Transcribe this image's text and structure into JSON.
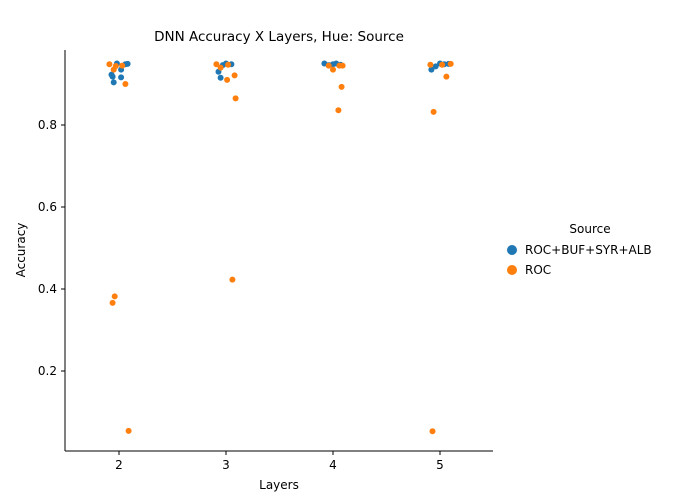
{
  "chart_data": {
    "type": "scatter",
    "title": "DNN Accuracy X Layers, Hue: Source",
    "xlabel": "Layers",
    "ylabel": "Accuracy",
    "categories": [
      "2",
      "3",
      "4",
      "5"
    ],
    "ylim": [
      0.0,
      1.0
    ],
    "yticks": [
      "0.2",
      "0.4",
      "0.6",
      "0.8"
    ],
    "grid": false,
    "legend": {
      "title": "Source",
      "position": "right"
    },
    "series": [
      {
        "name": "ROC+BUF+SYR+ALB",
        "color": "#1f77b4",
        "points": [
          {
            "x": "2",
            "jitter": -0.07,
            "y": 0.923
          },
          {
            "x": "2",
            "jitter": -0.06,
            "y": 0.918
          },
          {
            "x": "2",
            "jitter": -0.05,
            "y": 0.904
          },
          {
            "x": "2",
            "jitter": -0.02,
            "y": 0.95
          },
          {
            "x": "2",
            "jitter": 0.02,
            "y": 0.935
          },
          {
            "x": "2",
            "jitter": 0.02,
            "y": 0.916
          },
          {
            "x": "2",
            "jitter": 0.06,
            "y": 0.948
          },
          {
            "x": "2",
            "jitter": 0.08,
            "y": 0.949
          },
          {
            "x": "3",
            "jitter": -0.07,
            "y": 0.93
          },
          {
            "x": "3",
            "jitter": -0.05,
            "y": 0.915
          },
          {
            "x": "3",
            "jitter": -0.03,
            "y": 0.946
          },
          {
            "x": "3",
            "jitter": 0.0,
            "y": 0.95
          },
          {
            "x": "3",
            "jitter": 0.05,
            "y": 0.948
          },
          {
            "x": "4",
            "jitter": -0.08,
            "y": 0.95
          },
          {
            "x": "4",
            "jitter": -0.04,
            "y": 0.946
          },
          {
            "x": "4",
            "jitter": 0.0,
            "y": 0.948
          },
          {
            "x": "4",
            "jitter": 0.03,
            "y": 0.95
          },
          {
            "x": "4",
            "jitter": 0.07,
            "y": 0.947
          },
          {
            "x": "5",
            "jitter": -0.08,
            "y": 0.935
          },
          {
            "x": "5",
            "jitter": -0.04,
            "y": 0.943
          },
          {
            "x": "5",
            "jitter": 0.0,
            "y": 0.95
          },
          {
            "x": "5",
            "jitter": 0.04,
            "y": 0.948
          },
          {
            "x": "5",
            "jitter": 0.08,
            "y": 0.949
          }
        ]
      },
      {
        "name": "ROC",
        "color": "#ff7f0e",
        "points": [
          {
            "x": "2",
            "jitter": -0.09,
            "y": 0.948
          },
          {
            "x": "2",
            "jitter": -0.05,
            "y": 0.935
          },
          {
            "x": "2",
            "jitter": -0.03,
            "y": 0.944
          },
          {
            "x": "2",
            "jitter": 0.03,
            "y": 0.945
          },
          {
            "x": "2",
            "jitter": 0.06,
            "y": 0.9
          },
          {
            "x": "2",
            "jitter": -0.06,
            "y": 0.366
          },
          {
            "x": "2",
            "jitter": -0.04,
            "y": 0.382
          },
          {
            "x": "2",
            "jitter": 0.09,
            "y": 0.054
          },
          {
            "x": "3",
            "jitter": -0.09,
            "y": 0.948
          },
          {
            "x": "3",
            "jitter": -0.05,
            "y": 0.94
          },
          {
            "x": "3",
            "jitter": 0.01,
            "y": 0.91
          },
          {
            "x": "3",
            "jitter": 0.02,
            "y": 0.947
          },
          {
            "x": "3",
            "jitter": 0.08,
            "y": 0.921
          },
          {
            "x": "3",
            "jitter": 0.09,
            "y": 0.865
          },
          {
            "x": "3",
            "jitter": 0.06,
            "y": 0.423
          },
          {
            "x": "4",
            "jitter": -0.04,
            "y": 0.945
          },
          {
            "x": "4",
            "jitter": 0.0,
            "y": 0.935
          },
          {
            "x": "4",
            "jitter": 0.06,
            "y": 0.945
          },
          {
            "x": "4",
            "jitter": 0.09,
            "y": 0.945
          },
          {
            "x": "4",
            "jitter": 0.05,
            "y": 0.836
          },
          {
            "x": "4",
            "jitter": 0.08,
            "y": 0.893
          },
          {
            "x": "5",
            "jitter": -0.09,
            "y": 0.947
          },
          {
            "x": "5",
            "jitter": 0.02,
            "y": 0.947
          },
          {
            "x": "5",
            "jitter": 0.06,
            "y": 0.918
          },
          {
            "x": "5",
            "jitter": 0.1,
            "y": 0.949
          },
          {
            "x": "5",
            "jitter": -0.06,
            "y": 0.832
          },
          {
            "x": "5",
            "jitter": -0.07,
            "y": 0.053
          }
        ]
      }
    ]
  }
}
